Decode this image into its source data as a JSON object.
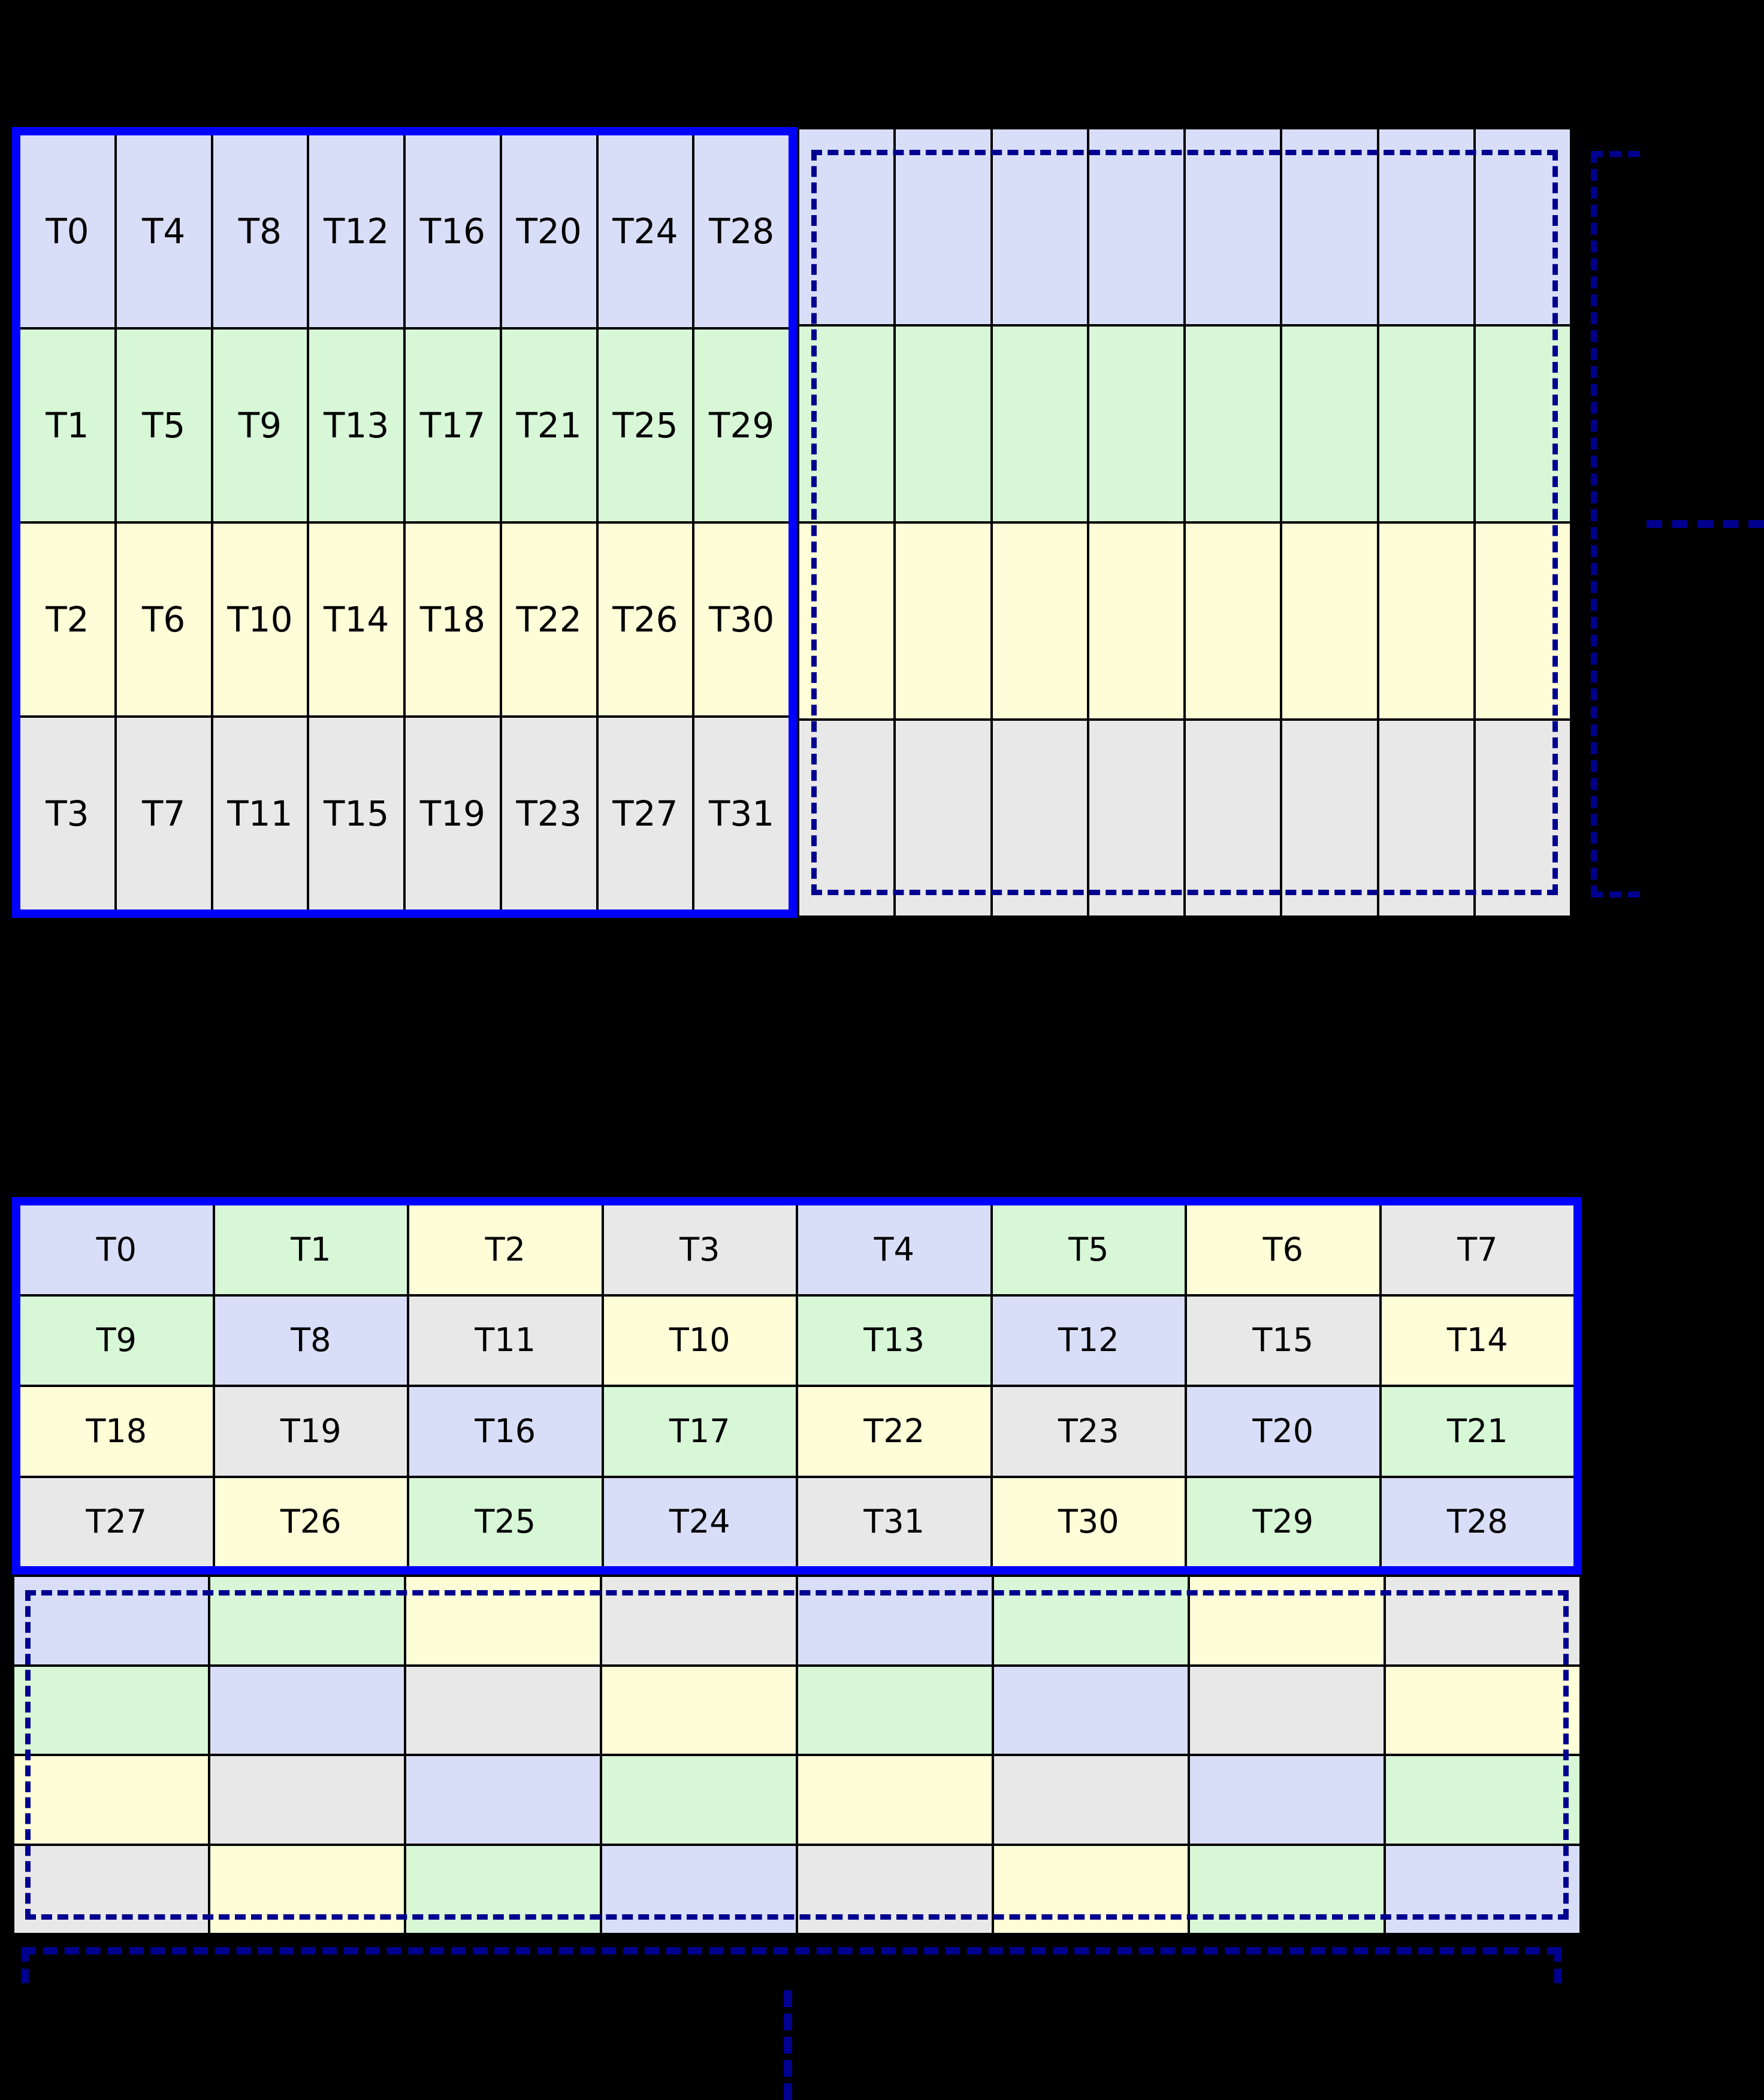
{
  "palette": {
    "background": "#000000",
    "cell_blue": "#d9def8",
    "cell_green": "#d7f7d7",
    "cell_yellow": "#fdfdd8",
    "cell_gray": "#e8e8e8",
    "solid_border_blue": "#0000ff",
    "dashed_border_navy": "#000090",
    "grid_line_black": "#000000",
    "label_text": "#000000"
  },
  "top_left_block": {
    "description_visible": "",
    "rows": [
      {
        "labels": [
          "T0",
          "T4",
          "T8",
          "T12",
          "T16",
          "T20",
          "T24",
          "T28"
        ],
        "colors": [
          "blue",
          "blue",
          "blue",
          "blue",
          "blue",
          "blue",
          "blue",
          "blue"
        ]
      },
      {
        "labels": [
          "T1",
          "T5",
          "T9",
          "T13",
          "T17",
          "T21",
          "T25",
          "T29"
        ],
        "colors": [
          "green",
          "green",
          "green",
          "green",
          "green",
          "green",
          "green",
          "green"
        ]
      },
      {
        "labels": [
          "T2",
          "T6",
          "T10",
          "T14",
          "T18",
          "T22",
          "T26",
          "T30"
        ],
        "colors": [
          "yellow",
          "yellow",
          "yellow",
          "yellow",
          "yellow",
          "yellow",
          "yellow",
          "yellow"
        ]
      },
      {
        "labels": [
          "T3",
          "T7",
          "T11",
          "T15",
          "T19",
          "T23",
          "T27",
          "T31"
        ],
        "colors": [
          "gray",
          "gray",
          "gray",
          "gray",
          "gray",
          "gray",
          "gray",
          "gray"
        ]
      }
    ]
  },
  "top_right_block": {
    "rows": [
      {
        "labels": [
          "",
          "",
          "",
          "",
          "",
          "",
          "",
          ""
        ],
        "colors": [
          "blue",
          "blue",
          "blue",
          "blue",
          "blue",
          "blue",
          "blue",
          "blue"
        ]
      },
      {
        "labels": [
          "",
          "",
          "",
          "",
          "",
          "",
          "",
          ""
        ],
        "colors": [
          "green",
          "green",
          "green",
          "green",
          "green",
          "green",
          "green",
          "green"
        ]
      },
      {
        "labels": [
          "",
          "",
          "",
          "",
          "",
          "",
          "",
          ""
        ],
        "colors": [
          "yellow",
          "yellow",
          "yellow",
          "yellow",
          "yellow",
          "yellow",
          "yellow",
          "yellow"
        ]
      },
      {
        "labels": [
          "",
          "",
          "",
          "",
          "",
          "",
          "",
          ""
        ],
        "colors": [
          "gray",
          "gray",
          "gray",
          "gray",
          "gray",
          "gray",
          "gray",
          "gray"
        ]
      }
    ]
  },
  "bottom_block": {
    "rows": [
      {
        "labels": [
          "T0",
          "T1",
          "T2",
          "T3",
          "T4",
          "T5",
          "T6",
          "T7"
        ],
        "colors": [
          "blue",
          "green",
          "yellow",
          "gray",
          "blue",
          "green",
          "yellow",
          "gray"
        ]
      },
      {
        "labels": [
          "T9",
          "T8",
          "T11",
          "T10",
          "T13",
          "T12",
          "T15",
          "T14"
        ],
        "colors": [
          "green",
          "blue",
          "gray",
          "yellow",
          "green",
          "blue",
          "gray",
          "yellow"
        ]
      },
      {
        "labels": [
          "T18",
          "T19",
          "T16",
          "T17",
          "T22",
          "T23",
          "T20",
          "T21"
        ],
        "colors": [
          "yellow",
          "gray",
          "blue",
          "green",
          "yellow",
          "gray",
          "blue",
          "green"
        ]
      },
      {
        "labels": [
          "T27",
          "T26",
          "T25",
          "T24",
          "T31",
          "T30",
          "T29",
          "T28"
        ],
        "colors": [
          "gray",
          "yellow",
          "green",
          "blue",
          "gray",
          "yellow",
          "green",
          "blue"
        ]
      }
    ]
  },
  "bottom_continuation_block": {
    "rows": [
      {
        "labels": [
          "",
          "",
          "",
          "",
          "",
          "",
          "",
          ""
        ],
        "colors": [
          "blue",
          "green",
          "yellow",
          "gray",
          "blue",
          "green",
          "yellow",
          "gray"
        ]
      },
      {
        "labels": [
          "",
          "",
          "",
          "",
          "",
          "",
          "",
          ""
        ],
        "colors": [
          "green",
          "blue",
          "gray",
          "yellow",
          "green",
          "blue",
          "gray",
          "yellow"
        ]
      },
      {
        "labels": [
          "",
          "",
          "",
          "",
          "",
          "",
          "",
          ""
        ],
        "colors": [
          "yellow",
          "gray",
          "blue",
          "green",
          "yellow",
          "gray",
          "blue",
          "green"
        ]
      },
      {
        "labels": [
          "",
          "",
          "",
          "",
          "",
          "",
          "",
          ""
        ],
        "colors": [
          "gray",
          "yellow",
          "green",
          "blue",
          "gray",
          "yellow",
          "green",
          "blue"
        ]
      }
    ]
  }
}
